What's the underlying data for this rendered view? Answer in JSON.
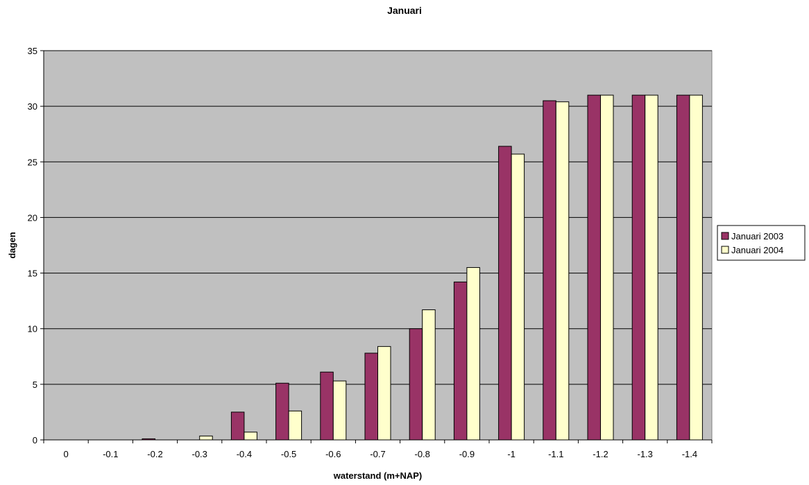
{
  "chart_data": {
    "type": "bar",
    "title": "Januari",
    "xlabel": "waterstand (m+NAP)",
    "ylabel": "dagen",
    "ylim": [
      0,
      35
    ],
    "yticks": [
      0,
      5,
      10,
      15,
      20,
      25,
      30,
      35
    ],
    "grid": true,
    "legend_position": "right",
    "categories": [
      "0",
      "-0.1",
      "-0.2",
      "-0.3",
      "-0.4",
      "-0.5",
      "-0.6",
      "-0.7",
      "-0.8",
      "-0.9",
      "-1",
      "-1.1",
      "-1.2",
      "-1.3",
      "-1.4"
    ],
    "series": [
      {
        "name": "Januari 2003",
        "color": "#993366",
        "values": [
          0,
          0,
          0.1,
          0,
          2.5,
          5.1,
          6.1,
          7.8,
          10,
          14.2,
          26.4,
          30.5,
          31,
          31,
          31
        ]
      },
      {
        "name": "Januari 2004",
        "color": "#FFFFCC",
        "values": [
          0,
          0,
          0,
          0.35,
          0.7,
          2.6,
          5.3,
          8.4,
          11.7,
          15.5,
          25.7,
          30.4,
          31,
          31,
          31
        ]
      }
    ],
    "plot_background": "#C0C0C0"
  }
}
